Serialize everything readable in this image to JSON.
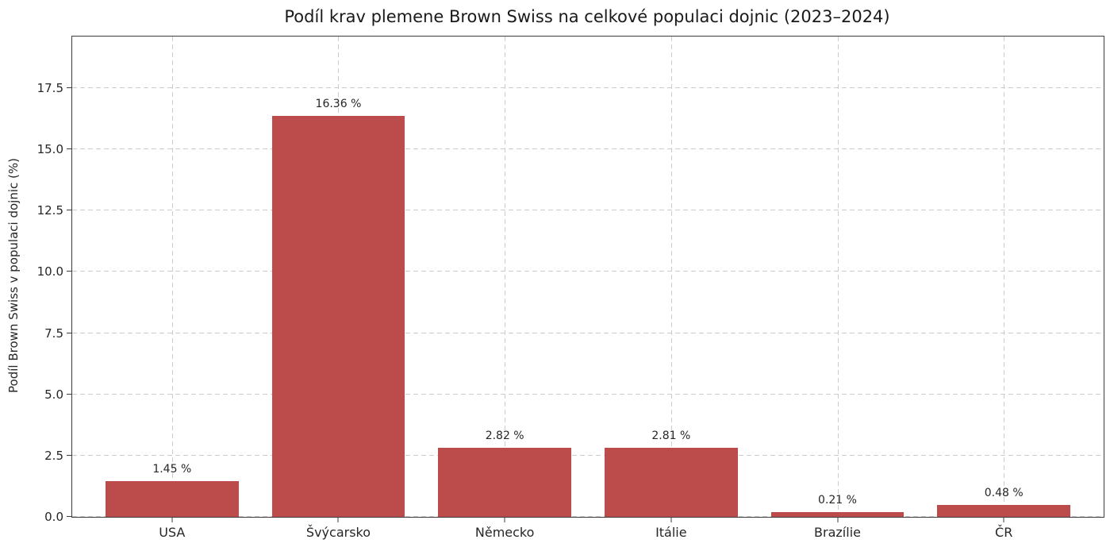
{
  "chart_data": {
    "type": "bar",
    "title": "Podíl krav plemene Brown Swiss na celkové populaci dojnic (2023–2024)",
    "xlabel": "",
    "ylabel": "Podíl Brown Swiss v populaci dojnic (%)",
    "categories": [
      "USA",
      "Švýcarsko",
      "Německo",
      "Itálie",
      "Brazílie",
      "ČR"
    ],
    "values": [
      1.45,
      16.36,
      2.82,
      2.81,
      0.21,
      0.48
    ],
    "value_labels": [
      "1.45 %",
      "16.36 %",
      "2.82 %",
      "2.81 %",
      "0.21 %",
      "0.48 %"
    ],
    "yticks": [
      0.0,
      2.5,
      5.0,
      7.5,
      10.0,
      12.5,
      15.0,
      17.5
    ],
    "ytick_labels": [
      "0.0",
      "2.5",
      "5.0",
      "7.5",
      "10.0",
      "12.5",
      "15.0",
      "17.5"
    ],
    "ylim": [
      0,
      19.6
    ],
    "grid": "dashed-both-axes",
    "legend": "none",
    "bar_color": "#bc4b4b",
    "grid_color": "#cccccc",
    "text_color": "#262626",
    "background": "#ffffff"
  }
}
